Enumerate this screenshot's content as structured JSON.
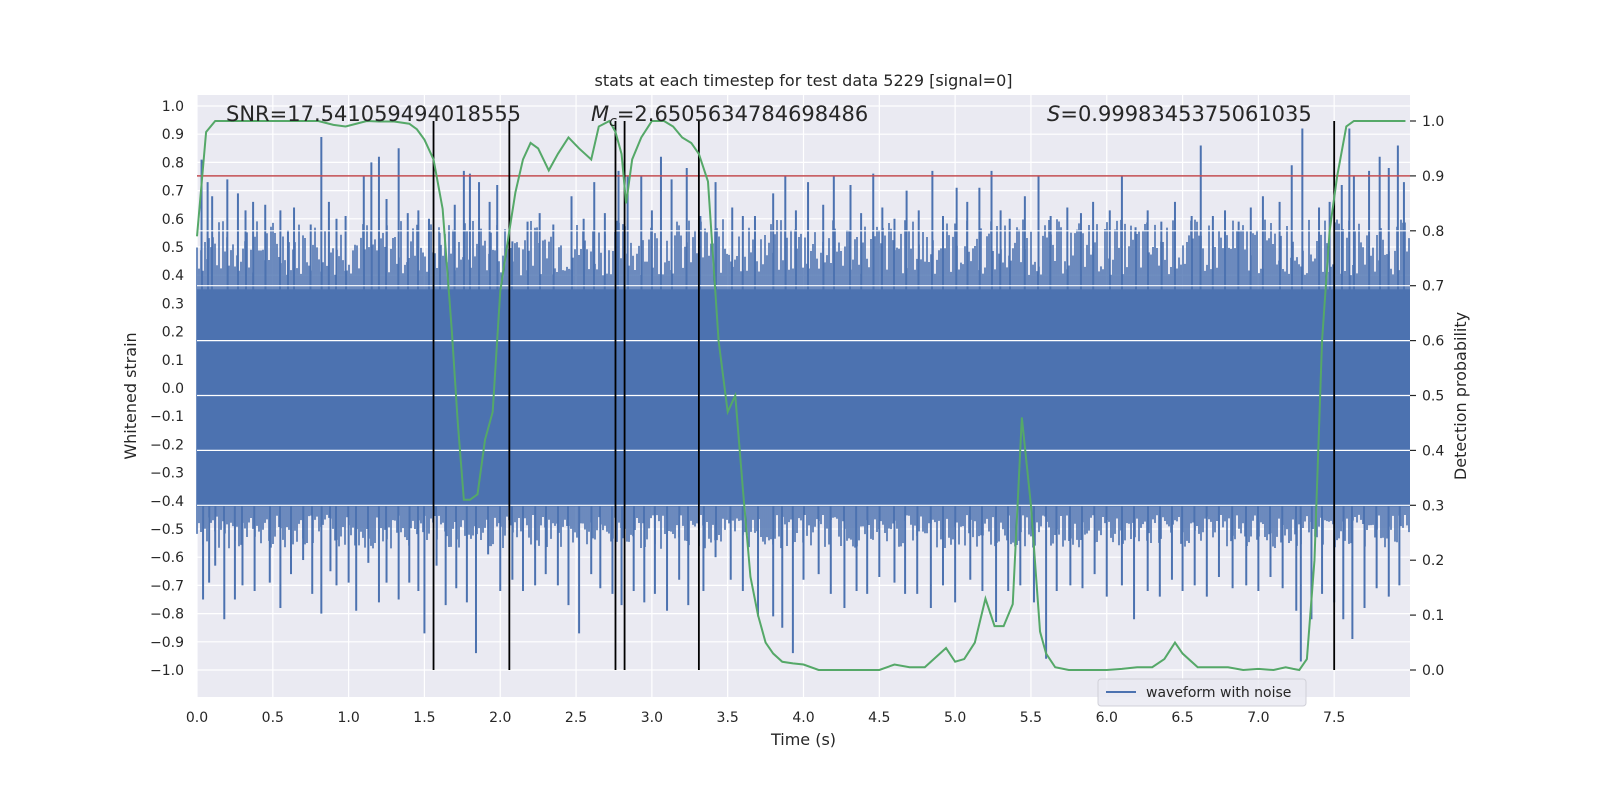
{
  "chart_data": {
    "type": "line",
    "title": "stats at each timestep for test data 5229 [signal=0]",
    "xlabel": "Time (s)",
    "ylabel": "Whitened strain",
    "y2label": "Detection probability",
    "xlim": [
      0.0,
      8.0
    ],
    "ylim": [
      -1.1,
      1.05
    ],
    "y2lim": [
      -0.05,
      1.03
    ],
    "xticks": [
      "0.0",
      "0.5",
      "1.0",
      "1.5",
      "2.0",
      "2.5",
      "3.0",
      "3.5",
      "4.0",
      "4.5",
      "5.0",
      "5.5",
      "6.0",
      "6.5",
      "7.0",
      "7.5"
    ],
    "yticks": [
      "1.0",
      "0.9",
      "0.8",
      "0.7",
      "0.6",
      "0.5",
      "0.4",
      "0.3",
      "0.2",
      "0.1",
      "0.0",
      "−0.1",
      "−0.2",
      "−0.3",
      "−0.4",
      "−0.5",
      "−0.6",
      "−0.7",
      "−0.8",
      "−0.9",
      "−1.0"
    ],
    "y2ticks": [
      "1.0",
      "0.9",
      "0.8",
      "0.7",
      "0.6",
      "0.5",
      "0.4",
      "0.3",
      "0.2",
      "0.1",
      "0.0"
    ],
    "grid": true,
    "colors": {
      "background": "#EAEAF2",
      "grid": "#FFFFFF",
      "waveform": "#4C72B0",
      "probability": "#55A868",
      "threshold": "#C44E52",
      "markers": "#000000"
    },
    "annotations": {
      "snr": "SNR=17.541059494018555",
      "mc_symbol": "M",
      "mc_subscript": "c",
      "mc_value": "=2.6505634784698486",
      "s_symbol": "S",
      "s_value": "=0.9998345375061035"
    },
    "threshold_probability": 0.9,
    "vertical_lines": [
      1.56,
      2.06,
      2.76,
      2.82,
      3.31,
      7.5
    ],
    "series": [
      {
        "name": "waveform with noise",
        "axis": "left",
        "band": {
          "upper": 0.35,
          "lower": -0.42
        },
        "upper_spikes": [
          [
            0.03,
            0.81
          ],
          [
            0.07,
            0.73
          ],
          [
            0.1,
            0.68
          ],
          [
            0.2,
            0.74
          ],
          [
            0.27,
            0.69
          ],
          [
            0.32,
            0.63
          ],
          [
            0.37,
            0.66
          ],
          [
            0.45,
            0.65
          ],
          [
            0.55,
            0.63
          ],
          [
            0.6,
            0.56
          ],
          [
            0.64,
            0.64
          ],
          [
            0.75,
            0.58
          ],
          [
            0.82,
            0.89
          ],
          [
            0.87,
            0.66
          ],
          [
            0.92,
            0.6
          ],
          [
            0.98,
            0.61
          ],
          [
            1.1,
            0.75
          ],
          [
            1.15,
            0.8
          ],
          [
            1.2,
            0.82
          ],
          [
            1.25,
            0.67
          ],
          [
            1.33,
            0.85
          ],
          [
            1.39,
            0.62
          ],
          [
            1.46,
            0.63
          ],
          [
            1.53,
            0.6
          ],
          [
            1.6,
            0.55
          ],
          [
            1.7,
            0.65
          ],
          [
            1.76,
            0.77
          ],
          [
            1.8,
            0.76
          ],
          [
            1.86,
            0.73
          ],
          [
            1.93,
            0.66
          ],
          [
            1.98,
            0.72
          ],
          [
            2.08,
            0.52
          ],
          [
            2.18,
            0.59
          ],
          [
            2.26,
            0.62
          ],
          [
            2.35,
            0.58
          ],
          [
            2.47,
            0.68
          ],
          [
            2.55,
            0.6
          ],
          [
            2.62,
            0.73
          ],
          [
            2.69,
            0.62
          ],
          [
            2.78,
            0.77
          ],
          [
            2.84,
            0.75
          ],
          [
            2.93,
            0.75
          ],
          [
            3.0,
            0.63
          ],
          [
            3.06,
            0.82
          ],
          [
            3.13,
            0.74
          ],
          [
            3.23,
            0.78
          ],
          [
            3.32,
            0.61
          ],
          [
            3.42,
            0.73
          ],
          [
            3.53,
            0.64
          ],
          [
            3.6,
            0.61
          ],
          [
            3.68,
            0.61
          ],
          [
            3.8,
            0.69
          ],
          [
            3.88,
            0.75
          ],
          [
            3.95,
            0.63
          ],
          [
            4.03,
            0.73
          ],
          [
            4.13,
            0.65
          ],
          [
            4.2,
            0.75
          ],
          [
            4.31,
            0.72
          ],
          [
            4.38,
            0.62
          ],
          [
            4.46,
            0.76
          ],
          [
            4.52,
            0.64
          ],
          [
            4.6,
            0.6
          ],
          [
            4.68,
            0.7
          ],
          [
            4.76,
            0.63
          ],
          [
            4.85,
            0.77
          ],
          [
            4.92,
            0.61
          ],
          [
            5.01,
            0.71
          ],
          [
            5.08,
            0.66
          ],
          [
            5.16,
            0.71
          ],
          [
            5.24,
            0.77
          ],
          [
            5.3,
            0.63
          ],
          [
            5.36,
            0.6
          ],
          [
            5.46,
            0.68
          ],
          [
            5.55,
            0.75
          ],
          [
            5.63,
            0.61
          ],
          [
            5.74,
            0.64
          ],
          [
            5.83,
            0.62
          ],
          [
            5.91,
            0.66
          ],
          [
            6.02,
            0.63
          ],
          [
            6.1,
            0.75
          ],
          [
            6.19,
            0.57
          ],
          [
            6.27,
            0.63
          ],
          [
            6.36,
            0.59
          ],
          [
            6.45,
            0.66
          ],
          [
            6.56,
            0.61
          ],
          [
            6.62,
            0.86
          ],
          [
            6.7,
            0.61
          ],
          [
            6.78,
            0.63
          ],
          [
            6.87,
            0.59
          ],
          [
            6.95,
            0.64
          ],
          [
            7.03,
            0.68
          ],
          [
            7.14,
            0.66
          ],
          [
            7.22,
            0.79
          ],
          [
            7.29,
            0.92
          ],
          [
            7.4,
            0.64
          ],
          [
            7.47,
            0.66
          ],
          [
            7.55,
            0.72
          ],
          [
            7.6,
            0.92
          ],
          [
            7.63,
            0.75
          ],
          [
            7.73,
            0.77
          ],
          [
            7.8,
            0.82
          ],
          [
            7.86,
            0.78
          ],
          [
            7.92,
            0.86
          ],
          [
            7.96,
            0.73
          ]
        ],
        "lower_spikes": [
          [
            0.04,
            -0.75
          ],
          [
            0.08,
            -0.69
          ],
          [
            0.12,
            -0.63
          ],
          [
            0.18,
            -0.82
          ],
          [
            0.25,
            -0.75
          ],
          [
            0.3,
            -0.7
          ],
          [
            0.38,
            -0.72
          ],
          [
            0.48,
            -0.69
          ],
          [
            0.55,
            -0.78
          ],
          [
            0.62,
            -0.66
          ],
          [
            0.7,
            -0.61
          ],
          [
            0.76,
            -0.73
          ],
          [
            0.82,
            -0.8
          ],
          [
            0.88,
            -0.65
          ],
          [
            0.92,
            -0.7
          ],
          [
            1.0,
            -0.69
          ],
          [
            1.05,
            -0.79
          ],
          [
            1.13,
            -0.62
          ],
          [
            1.2,
            -0.76
          ],
          [
            1.25,
            -0.69
          ],
          [
            1.33,
            -0.75
          ],
          [
            1.4,
            -0.69
          ],
          [
            1.46,
            -0.72
          ],
          [
            1.5,
            -0.87
          ],
          [
            1.58,
            -0.63
          ],
          [
            1.64,
            -0.77
          ],
          [
            1.71,
            -0.71
          ],
          [
            1.78,
            -0.76
          ],
          [
            1.84,
            -0.94
          ],
          [
            1.92,
            -0.59
          ],
          [
            2.0,
            -0.72
          ],
          [
            2.08,
            -0.68
          ],
          [
            2.15,
            -0.72
          ],
          [
            2.23,
            -0.7
          ],
          [
            2.3,
            -0.66
          ],
          [
            2.38,
            -0.7
          ],
          [
            2.45,
            -0.77
          ],
          [
            2.52,
            -0.87
          ],
          [
            2.6,
            -0.66
          ],
          [
            2.66,
            -0.71
          ],
          [
            2.74,
            -0.73
          ],
          [
            2.8,
            -0.77
          ],
          [
            2.88,
            -0.72
          ],
          [
            2.95,
            -0.76
          ],
          [
            3.02,
            -0.73
          ],
          [
            3.1,
            -0.79
          ],
          [
            3.18,
            -0.68
          ],
          [
            3.24,
            -0.77
          ],
          [
            3.34,
            -0.72
          ],
          [
            3.42,
            -0.6
          ],
          [
            3.52,
            -0.68
          ],
          [
            3.6,
            -0.72
          ],
          [
            3.7,
            -0.81
          ],
          [
            3.8,
            -0.81
          ],
          [
            3.86,
            -0.85
          ],
          [
            3.93,
            -0.94
          ],
          [
            4.0,
            -0.68
          ],
          [
            4.1,
            -0.66
          ],
          [
            4.18,
            -0.73
          ],
          [
            4.27,
            -0.78
          ],
          [
            4.35,
            -0.72
          ],
          [
            4.42,
            -0.73
          ],
          [
            4.5,
            -0.67
          ],
          [
            4.6,
            -0.69
          ],
          [
            4.67,
            -0.73
          ],
          [
            4.75,
            -0.73
          ],
          [
            4.84,
            -0.78
          ],
          [
            4.92,
            -0.7
          ],
          [
            5.0,
            -0.76
          ],
          [
            5.1,
            -0.68
          ],
          [
            5.18,
            -0.72
          ],
          [
            5.27,
            -0.83
          ],
          [
            5.35,
            -0.72
          ],
          [
            5.43,
            -0.7
          ],
          [
            5.52,
            -0.76
          ],
          [
            5.6,
            -0.96
          ],
          [
            5.67,
            -0.72
          ],
          [
            5.76,
            -0.7
          ],
          [
            5.84,
            -0.71
          ],
          [
            5.92,
            -0.66
          ],
          [
            6.0,
            -0.74
          ],
          [
            6.1,
            -0.7
          ],
          [
            6.18,
            -0.82
          ],
          [
            6.27,
            -0.72
          ],
          [
            6.35,
            -0.74
          ],
          [
            6.43,
            -0.68
          ],
          [
            6.5,
            -0.72
          ],
          [
            6.58,
            -0.7
          ],
          [
            6.66,
            -0.74
          ],
          [
            6.74,
            -0.67
          ],
          [
            6.83,
            -0.71
          ],
          [
            6.92,
            -0.7
          ],
          [
            7.0,
            -0.72
          ],
          [
            7.08,
            -0.67
          ],
          [
            7.16,
            -0.71
          ],
          [
            7.25,
            -0.79
          ],
          [
            7.28,
            -0.97
          ],
          [
            7.35,
            -0.82
          ],
          [
            7.42,
            -0.73
          ],
          [
            7.5,
            -0.76
          ],
          [
            7.56,
            -0.82
          ],
          [
            7.62,
            -0.89
          ],
          [
            7.7,
            -0.78
          ],
          [
            7.78,
            -0.71
          ],
          [
            7.86,
            -0.74
          ],
          [
            7.93,
            -0.7
          ]
        ]
      },
      {
        "name": "detection probability",
        "axis": "right",
        "x": [
          0.0,
          0.06,
          0.12,
          0.2,
          0.3,
          0.4,
          0.5,
          0.6,
          0.7,
          0.8,
          0.9,
          0.98,
          1.05,
          1.12,
          1.2,
          1.3,
          1.4,
          1.45,
          1.5,
          1.56,
          1.62,
          1.68,
          1.72,
          1.76,
          1.8,
          1.85,
          1.9,
          1.95,
          2.0,
          2.06,
          2.1,
          2.15,
          2.2,
          2.25,
          2.32,
          2.38,
          2.45,
          2.52,
          2.6,
          2.65,
          2.72,
          2.76,
          2.8,
          2.83,
          2.87,
          2.93,
          3.0,
          3.08,
          3.14,
          3.2,
          3.26,
          3.31,
          3.37,
          3.44,
          3.5,
          3.55,
          3.6,
          3.65,
          3.7,
          3.75,
          3.8,
          3.86,
          3.93,
          4.0,
          4.1,
          4.2,
          4.3,
          4.42,
          4.5,
          4.6,
          4.7,
          4.8,
          4.88,
          4.94,
          5.0,
          5.06,
          5.13,
          5.2,
          5.26,
          5.32,
          5.38,
          5.44,
          5.5,
          5.56,
          5.6,
          5.66,
          5.75,
          5.9,
          6.0,
          6.1,
          6.2,
          6.3,
          6.38,
          6.45,
          6.5,
          6.6,
          6.7,
          6.8,
          6.9,
          7.0,
          7.1,
          7.18,
          7.23,
          7.27,
          7.32,
          7.37,
          7.42,
          7.47,
          7.52,
          7.58,
          7.63,
          7.7,
          7.8,
          7.9,
          7.97
        ],
        "values": [
          0.79,
          0.98,
          1.0,
          1.0,
          1.0,
          1.0,
          1.0,
          1.0,
          1.0,
          1.0,
          0.993,
          0.99,
          0.995,
          1.0,
          0.999,
          0.999,
          0.995,
          0.985,
          0.966,
          0.93,
          0.84,
          0.62,
          0.45,
          0.31,
          0.31,
          0.32,
          0.42,
          0.47,
          0.69,
          0.8,
          0.87,
          0.93,
          0.96,
          0.95,
          0.91,
          0.94,
          0.97,
          0.95,
          0.93,
          0.99,
          1.0,
          0.98,
          0.94,
          0.85,
          0.93,
          0.97,
          1.0,
          1.0,
          0.99,
          0.97,
          0.96,
          0.94,
          0.89,
          0.6,
          0.47,
          0.5,
          0.33,
          0.17,
          0.1,
          0.05,
          0.03,
          0.015,
          0.012,
          0.01,
          0.0,
          0.0,
          0.0,
          0.0,
          0.0,
          0.01,
          0.005,
          0.005,
          0.025,
          0.04,
          0.015,
          0.02,
          0.05,
          0.13,
          0.08,
          0.08,
          0.12,
          0.46,
          0.3,
          0.07,
          0.03,
          0.005,
          0.0,
          0.0,
          0.0,
          0.002,
          0.005,
          0.005,
          0.02,
          0.05,
          0.03,
          0.005,
          0.005,
          0.005,
          0.0,
          0.002,
          0.0,
          0.005,
          0.002,
          0.0,
          0.02,
          0.2,
          0.6,
          0.8,
          0.9,
          0.99,
          1.0,
          1.0,
          1.0,
          1.0,
          1.0
        ]
      }
    ],
    "legend": {
      "label": "waveform with noise",
      "placement": "lower-right"
    }
  }
}
